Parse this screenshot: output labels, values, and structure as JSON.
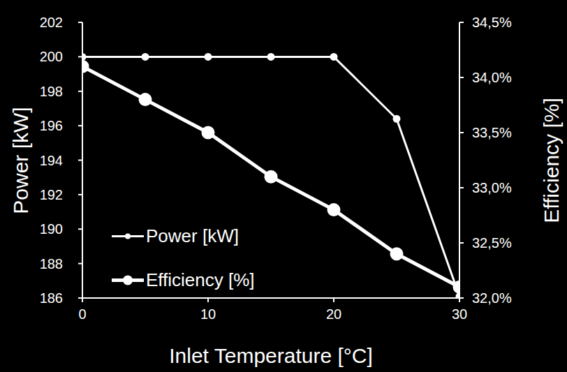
{
  "chart_data": {
    "type": "line",
    "x_label": "Inlet Temperature [°C]",
    "y_label": "Power [kW]",
    "y2_label": "Efficiency [%]",
    "x": [
      0,
      5,
      10,
      15,
      20,
      25,
      30
    ],
    "xlim": [
      0,
      30
    ],
    "xticks": [
      0,
      10,
      20,
      30
    ],
    "ylim": [
      186,
      202
    ],
    "yticks": [
      186,
      188,
      190,
      192,
      194,
      196,
      198,
      200,
      202
    ],
    "y2lim": [
      32,
      34.5
    ],
    "y2ticks": [
      {
        "value": 32,
        "label": "32,0%"
      },
      {
        "value": 32.5,
        "label": "32,5%"
      },
      {
        "value": 33,
        "label": "33,0%"
      },
      {
        "value": 33.5,
        "label": "33,5%"
      },
      {
        "value": 34,
        "label": "34,0%"
      },
      {
        "value": 34.5,
        "label": "34,5%"
      }
    ],
    "legend": "lower left",
    "grid": false,
    "series": [
      {
        "name": "Power [kW]",
        "color": "#ffffff",
        "values": [
          200,
          200,
          200,
          200,
          200,
          196.4,
          186.1
        ],
        "marker": "circle",
        "axis": "y"
      },
      {
        "name": "Efficiency [%]",
        "color": "#ffffff",
        "values": [
          34.1,
          33.8,
          33.5,
          33.1,
          32.8,
          32.4,
          32.1
        ],
        "marker": "circle",
        "axis": "y2"
      }
    ]
  }
}
